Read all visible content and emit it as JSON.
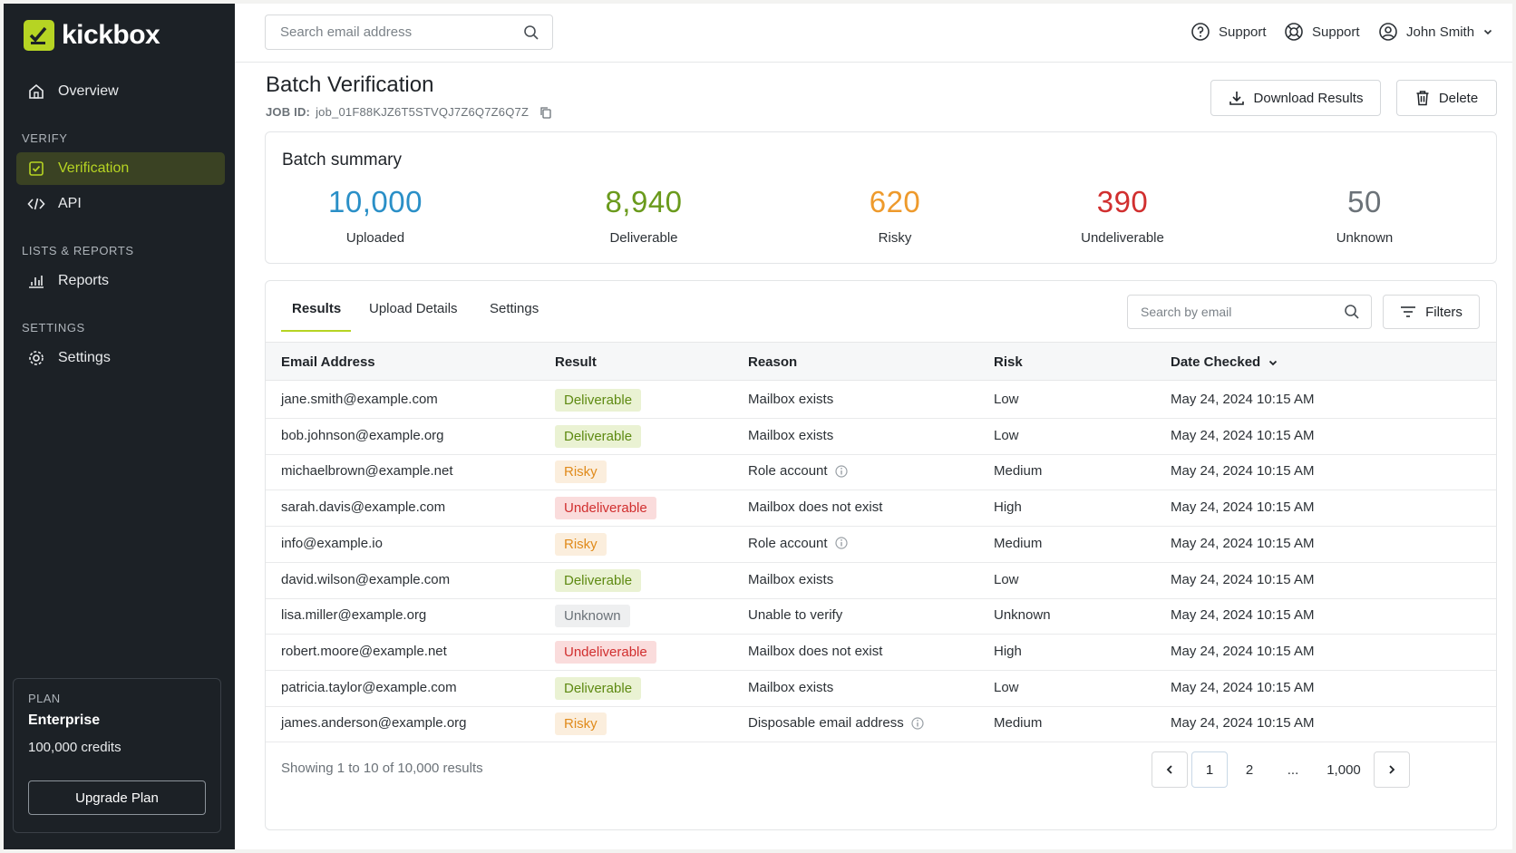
{
  "brand": {
    "name": "kickbox",
    "accent": "#b6d423"
  },
  "sidebar": {
    "overview": "Overview",
    "sections": {
      "verify": "VERIFY",
      "lists": "LISTS & REPORTS",
      "settings": "SETTINGS"
    },
    "items": {
      "verification": "Verification",
      "api": "API",
      "reports": "Reports",
      "settings": "Settings"
    },
    "plan": {
      "label": "PLAN",
      "name": "Enterprise",
      "credits": "100,000 credits",
      "upgrade": "Upgrade Plan"
    }
  },
  "topbar": {
    "search_placeholder": "Search email address",
    "support1": "Support",
    "support2": "Support",
    "user": "John Smith"
  },
  "header": {
    "title": "Batch Verification",
    "job_label": "JOB ID:",
    "job_id": "job_01F88KJZ6T5STVQJ7Z6Q7Z6Q7Z",
    "download": "Download Results",
    "delete": "Delete"
  },
  "summary": {
    "title": "Batch summary",
    "stats": [
      {
        "value": "10,000",
        "label": "Uploaded",
        "color": "#2a8fc7"
      },
      {
        "value": "8,940",
        "label": "Deliverable",
        "color": "#6a9a1c"
      },
      {
        "value": "620",
        "label": "Risky",
        "color": "#ee9a2c"
      },
      {
        "value": "390",
        "label": "Undeliverable",
        "color": "#d12f2f"
      },
      {
        "value": "50",
        "label": "Unknown",
        "color": "#6b7278"
      }
    ]
  },
  "tabs": {
    "results": "Results",
    "upload": "Upload Details",
    "settings": "Settings"
  },
  "table_search_placeholder": "Search by email",
  "filters": "Filters",
  "columns": {
    "email": "Email Address",
    "result": "Result",
    "reason": "Reason",
    "risk": "Risk",
    "date": "Date Checked"
  },
  "rows": [
    {
      "email": "jane.smith@example.com",
      "result": "Deliverable",
      "reason": "Mailbox exists",
      "risk": "Low",
      "date": "May 24, 2024 10:15 AM"
    },
    {
      "email": "bob.johnson@example.org",
      "result": "Deliverable",
      "reason": "Mailbox exists",
      "risk": "Low",
      "date": "May 24, 2024 10:15 AM"
    },
    {
      "email": "michaelbrown@example.net",
      "result": "Risky",
      "reason": "Role account",
      "risk": "Medium",
      "date": "May 24, 2024 10:15 AM"
    },
    {
      "email": "sarah.davis@example.com",
      "result": "Undeliverable",
      "reason": "Mailbox does not exist",
      "risk": "High",
      "date": "May 24, 2024 10:15 AM"
    },
    {
      "email": "info@example.io",
      "result": "Risky",
      "reason": "Role account",
      "risk": "Medium",
      "date": "May 24, 2024 10:15 AM"
    },
    {
      "email": "david.wilson@example.com",
      "result": "Deliverable",
      "reason": "Mailbox exists",
      "risk": "Low",
      "date": "May 24, 2024 10:15 AM"
    },
    {
      "email": "lisa.miller@example.org",
      "result": "Unknown",
      "reason": "Unable to verify",
      "risk": "Unknown",
      "date": "May 24, 2024 10:15 AM"
    },
    {
      "email": "robert.moore@example.net",
      "result": "Undeliverable",
      "reason": "Mailbox does not exist",
      "risk": "High",
      "date": "May 24, 2024 10:15 AM"
    },
    {
      "email": "patricia.taylor@example.com",
      "result": "Deliverable",
      "reason": "Mailbox exists",
      "risk": "Low",
      "date": "May 24, 2024 10:15 AM"
    },
    {
      "email": "james.anderson@example.org",
      "result": "Risky",
      "reason": "Disposable email address",
      "risk": "Medium",
      "date": "May 24, 2024 10:15 AM"
    }
  ],
  "footer": {
    "showing": "Showing 1 to 10 of 10,000 results",
    "pages": {
      "p1": "1",
      "p2": "2",
      "ellipsis": "...",
      "last": "1,000"
    }
  }
}
